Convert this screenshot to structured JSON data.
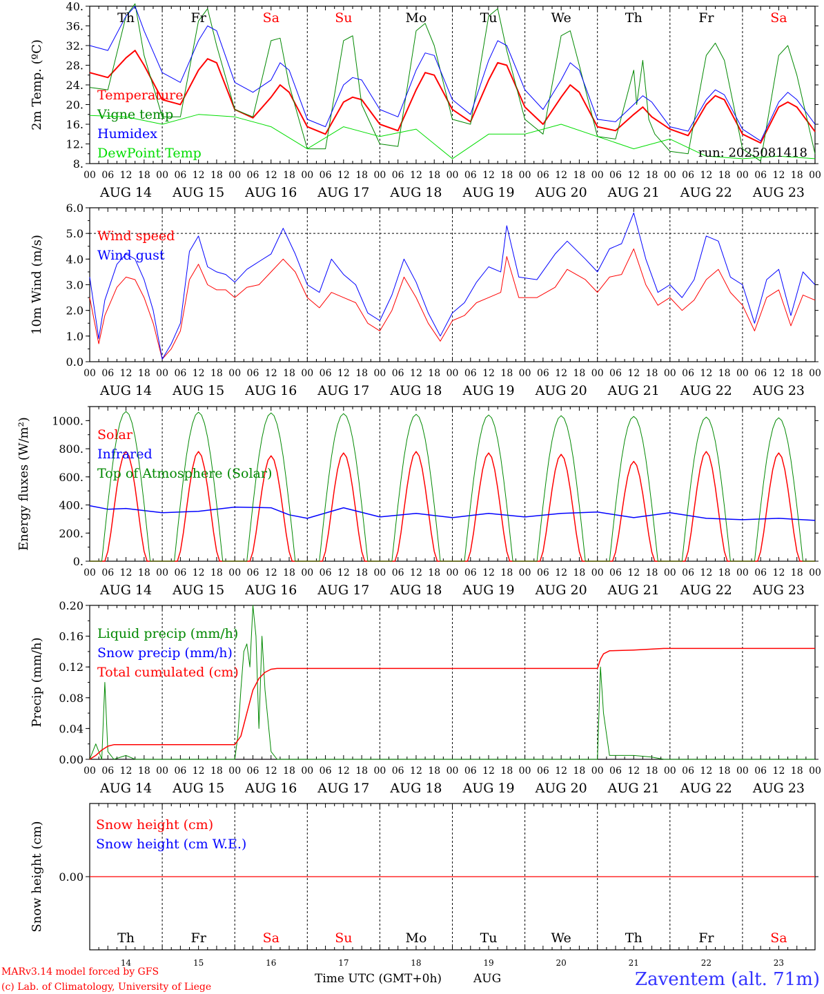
{
  "colors": {
    "red": "#ff0000",
    "green": "#008800",
    "blue": "#0000ff",
    "lightgreen": "#00dd00",
    "weekend": "#ff0000",
    "weekday": "#000000",
    "brand": "#3333ff"
  },
  "days": [
    {
      "name": "Th",
      "date": "AUG 14",
      "num": "14",
      "weekend": false
    },
    {
      "name": "Fr",
      "date": "AUG 15",
      "num": "15",
      "weekend": false
    },
    {
      "name": "Sa",
      "date": "AUG 16",
      "num": "16",
      "weekend": true
    },
    {
      "name": "Su",
      "date": "AUG 17",
      "num": "17",
      "weekend": true
    },
    {
      "name": "Mo",
      "date": "AUG 18",
      "num": "18",
      "weekend": false
    },
    {
      "name": "Tu",
      "date": "AUG 19",
      "num": "19",
      "weekend": false
    },
    {
      "name": "We",
      "date": "AUG 20",
      "num": "20",
      "weekend": false
    },
    {
      "name": "Th",
      "date": "AUG 21",
      "num": "21",
      "weekend": false
    },
    {
      "name": "Fr",
      "date": "AUG 22",
      "num": "22",
      "weekend": false
    },
    {
      "name": "Sa",
      "date": "AUG 23",
      "num": "23",
      "weekend": true
    }
  ],
  "hour_labels": [
    "00",
    "06",
    "12",
    "18"
  ],
  "final_hour_label": "00",
  "footer": {
    "model": "MARv3.14 model forced by GFS",
    "copyright": "(c) Lab. of Climatology, University of Liege",
    "xlabel": "Time UTC (GMT+0h)",
    "month": "AUG",
    "station": "Zaventem (alt. 71m)"
  },
  "chart_data": [
    {
      "id": "temperature",
      "type": "line",
      "ylabel": "2m Temp. (ºC)",
      "ylim": [
        8,
        40
      ],
      "yticks": [
        "40.",
        "36.",
        "32.",
        "28.",
        "24.",
        "20.",
        "16.",
        "12.",
        "8."
      ],
      "ytick_values": [
        40,
        36,
        32,
        28,
        24,
        20,
        16,
        12,
        8
      ],
      "x_unit": "hours since AUG 14 00 UTC",
      "x_range": [
        0,
        240
      ],
      "annotation": "run: 2025081418",
      "series": [
        {
          "name": "Temperature",
          "color": "red",
          "width": 2,
          "x": [
            0,
            6,
            12,
            15,
            18,
            24,
            30,
            36,
            39,
            42,
            48,
            54,
            60,
            63,
            66,
            72,
            78,
            84,
            87,
            90,
            96,
            102,
            108,
            111,
            114,
            120,
            126,
            132,
            135,
            138,
            144,
            150,
            156,
            159,
            162,
            168,
            174,
            180,
            183,
            186,
            192,
            198,
            204,
            207,
            210,
            216,
            222,
            228,
            231,
            234,
            240
          ],
          "y": [
            26.5,
            25.5,
            29.5,
            31,
            28,
            21,
            20,
            27,
            29.3,
            28.5,
            19,
            17.3,
            21.5,
            24,
            22.5,
            15.5,
            14,
            20.5,
            21.5,
            21,
            16,
            14.7,
            23,
            26.5,
            26,
            19,
            16.5,
            25,
            28.5,
            28,
            19.5,
            16,
            21.5,
            24,
            22.5,
            15.5,
            14.7,
            18,
            19.5,
            17.5,
            15,
            13.7,
            20,
            21.8,
            21,
            14,
            12.2,
            19.5,
            20.5,
            19.5,
            14.5
          ]
        },
        {
          "name": "Vigne temp",
          "color": "green",
          "width": 1,
          "x": [
            0,
            6,
            12,
            15,
            18,
            24,
            30,
            36,
            39,
            42,
            48,
            54,
            60,
            63,
            66,
            72,
            78,
            84,
            87,
            90,
            96,
            102,
            108,
            111,
            114,
            120,
            126,
            132,
            135,
            138,
            144,
            150,
            156,
            159,
            162,
            168,
            174,
            180,
            181,
            183,
            185,
            187,
            192,
            198,
            204,
            207,
            210,
            216,
            222,
            228,
            231,
            234,
            240
          ],
          "y": [
            23.5,
            23,
            38,
            40.5,
            30,
            17.5,
            17.5,
            37,
            39.5,
            32,
            19,
            17.5,
            33,
            33.5,
            24,
            11,
            11,
            33,
            34,
            20,
            12,
            11.5,
            35,
            36.5,
            32,
            17,
            16,
            38,
            39.5,
            31,
            17,
            14,
            34,
            35,
            28,
            13.5,
            13,
            27,
            20,
            29,
            17,
            14,
            10.5,
            10,
            30,
            32.5,
            29,
            11,
            8.5,
            30,
            32,
            26,
            10
          ]
        },
        {
          "name": "Humidex",
          "color": "blue",
          "width": 1,
          "x": [
            0,
            6,
            12,
            15,
            18,
            24,
            30,
            36,
            39,
            42,
            48,
            54,
            60,
            63,
            66,
            72,
            78,
            84,
            87,
            90,
            96,
            102,
            108,
            111,
            114,
            120,
            126,
            132,
            135,
            138,
            144,
            150,
            156,
            159,
            162,
            168,
            174,
            180,
            183,
            186,
            192,
            198,
            204,
            207,
            210,
            216,
            222,
            228,
            231,
            234,
            240
          ],
          "y": [
            32,
            31,
            38,
            40,
            35,
            26.5,
            24.5,
            33,
            36,
            35,
            24.5,
            22.5,
            25,
            28.5,
            27,
            17,
            15.5,
            24,
            25.5,
            25,
            19,
            17.5,
            27,
            30.5,
            30,
            21,
            18,
            29,
            33,
            32,
            23,
            19,
            25,
            28.5,
            27,
            17,
            16.5,
            20,
            21.8,
            20.5,
            15.5,
            14.6,
            21,
            23,
            22,
            15,
            12.6,
            20.5,
            22.5,
            21,
            16
          ]
        },
        {
          "name": "DewPoint Temp",
          "color": "lightgreen",
          "width": 1,
          "x": [
            0,
            12,
            24,
            36,
            48,
            60,
            72,
            84,
            96,
            108,
            120,
            132,
            144,
            156,
            168,
            180,
            192,
            204,
            216,
            228,
            240
          ],
          "y": [
            17.8,
            17.5,
            16,
            18,
            17.5,
            15.5,
            11,
            15.5,
            13.5,
            15,
            9,
            14,
            14,
            16,
            13.5,
            11,
            13,
            9.5,
            9,
            9.5,
            9
          ]
        }
      ]
    },
    {
      "id": "wind",
      "type": "line",
      "ylabel": "10m Wind (m/s)",
      "ylim": [
        0,
        6
      ],
      "yticks": [
        "6.0",
        "5.0",
        "4.0",
        "3.0",
        "2.0",
        "1.0",
        "0.0"
      ],
      "ytick_values": [
        6,
        5,
        4,
        3,
        2,
        1,
        0
      ],
      "reference_line": 5,
      "x_unit": "hours since AUG 14 00 UTC",
      "x_range": [
        0,
        240
      ],
      "series": [
        {
          "name": "Wind speed",
          "color": "red",
          "width": 1,
          "x": [
            0,
            3,
            5,
            9,
            12,
            15,
            18,
            21,
            24,
            27,
            30,
            33,
            36,
            39,
            42,
            45,
            48,
            52,
            56,
            60,
            64,
            68,
            72,
            76,
            80,
            84,
            88,
            92,
            96,
            100,
            104,
            108,
            112,
            116,
            120,
            124,
            128,
            132,
            136,
            138,
            142,
            148,
            154,
            158,
            164,
            168,
            172,
            176,
            180,
            184,
            188,
            192,
            196,
            200,
            204,
            208,
            212,
            216,
            220,
            224,
            228,
            232,
            236,
            240
          ],
          "y": [
            2.5,
            0.7,
            1.8,
            2.9,
            3.3,
            3.2,
            2.5,
            1.5,
            0.1,
            0.5,
            1.2,
            3.2,
            3.8,
            3.0,
            2.8,
            2.8,
            2.5,
            2.9,
            3.0,
            3.5,
            4.0,
            3.5,
            2.5,
            2.1,
            2.7,
            2.5,
            2.3,
            1.5,
            1.2,
            2.0,
            3.3,
            2.5,
            1.5,
            0.8,
            1.6,
            1.8,
            2.3,
            2.5,
            2.7,
            4.1,
            2.5,
            2.5,
            2.9,
            3.6,
            3.2,
            2.7,
            3.3,
            3.4,
            4.4,
            3.0,
            2.2,
            2.5,
            2.0,
            2.4,
            3.2,
            3.6,
            2.7,
            2.2,
            1.2,
            2.5,
            2.8,
            1.4,
            2.6,
            2.4
          ]
        },
        {
          "name": "Wind gust",
          "color": "blue",
          "width": 1,
          "x": [
            0,
            3,
            5,
            9,
            12,
            15,
            18,
            21,
            24,
            27,
            30,
            33,
            36,
            39,
            42,
            45,
            48,
            52,
            56,
            60,
            64,
            68,
            72,
            76,
            80,
            84,
            88,
            92,
            96,
            100,
            104,
            108,
            112,
            116,
            120,
            124,
            128,
            132,
            136,
            138,
            142,
            148,
            154,
            158,
            164,
            168,
            172,
            176,
            180,
            184,
            188,
            192,
            196,
            200,
            204,
            208,
            212,
            216,
            220,
            224,
            228,
            232,
            236,
            240
          ],
          "y": [
            3.3,
            0.9,
            2.4,
            3.8,
            4.2,
            4.0,
            3.2,
            2.0,
            0.1,
            0.7,
            1.5,
            4.3,
            4.9,
            3.7,
            3.5,
            3.4,
            3.1,
            3.6,
            3.9,
            4.2,
            5.2,
            4.2,
            3.0,
            2.7,
            4.0,
            3.4,
            3.0,
            1.9,
            1.6,
            2.6,
            4.0,
            3.1,
            1.9,
            1.0,
            1.9,
            2.3,
            3.1,
            3.7,
            3.5,
            5.3,
            3.3,
            3.2,
            4.2,
            4.7,
            4.0,
            3.5,
            4.4,
            4.6,
            5.8,
            4.0,
            2.7,
            3.0,
            2.5,
            3.2,
            4.9,
            4.7,
            3.3,
            3.0,
            1.5,
            3.2,
            3.6,
            1.8,
            3.5,
            3.0
          ]
        }
      ]
    },
    {
      "id": "energy",
      "type": "line",
      "ylabel": "Energy fluxes (W/m²)",
      "ylim": [
        0,
        1100
      ],
      "yticks": [
        "1000.",
        "800.",
        "600.",
        "400.",
        "200.",
        "0."
      ],
      "ytick_values": [
        1000,
        800,
        600,
        400,
        200,
        0
      ],
      "x_unit": "hours since AUG 14 00 UTC",
      "x_range": [
        0,
        240
      ],
      "series": [
        {
          "name": "Solar",
          "color": "red",
          "width": 1.5,
          "daily_peak": [
            780,
            780,
            750,
            770,
            780,
            770,
            760,
            710,
            780,
            770
          ],
          "x": [
            0,
            24,
            48,
            72,
            96,
            120,
            144,
            168,
            192,
            216
          ],
          "y": [
            780,
            780,
            750,
            770,
            780,
            770,
            760,
            710,
            780,
            770
          ]
        },
        {
          "name": "Infrared",
          "color": "blue",
          "width": 1.5,
          "x": [
            0,
            6,
            12,
            24,
            36,
            48,
            60,
            66,
            72,
            84,
            96,
            108,
            120,
            132,
            144,
            156,
            168,
            180,
            192,
            204,
            216,
            228,
            240
          ],
          "y": [
            395,
            370,
            375,
            345,
            355,
            385,
            380,
            330,
            305,
            380,
            315,
            340,
            310,
            340,
            315,
            340,
            350,
            310,
            345,
            305,
            295,
            305,
            290
          ]
        },
        {
          "name": "Top of Atmosphere (Solar)",
          "color": "green",
          "width": 1,
          "x": [
            0,
            24,
            48,
            72,
            96,
            120,
            144,
            168,
            192,
            216
          ],
          "y": [
            1065,
            1060,
            1055,
            1050,
            1045,
            1040,
            1035,
            1030,
            1025,
            1020
          ]
        }
      ]
    },
    {
      "id": "precip",
      "type": "line",
      "ylabel": "Precip (mm/h)",
      "ylim": [
        0,
        0.2
      ],
      "yticks": [
        "0.20",
        "0.16",
        "0.12",
        "0.08",
        "0.04",
        "0.00"
      ],
      "ytick_values": [
        0.2,
        0.16,
        0.12,
        0.08,
        0.04,
        0
      ],
      "x_unit": "hours since AUG 14 00 UTC",
      "x_range": [
        0,
        240
      ],
      "series": [
        {
          "name": "Liquid precip (mm/h)",
          "color": "green",
          "width": 1,
          "x": [
            0,
            2,
            4,
            5,
            6,
            8,
            12,
            15,
            48,
            49,
            50,
            51,
            52,
            53,
            54,
            55,
            56,
            57,
            58,
            59,
            60,
            62,
            64,
            168,
            169,
            170,
            172,
            180,
            186,
            190,
            240
          ],
          "y": [
            0,
            0.02,
            0.0,
            0.1,
            0.01,
            0.0,
            0.005,
            0,
            0,
            0.03,
            0.09,
            0.14,
            0.15,
            0.12,
            0.2,
            0.16,
            0.04,
            0.16,
            0.09,
            0.05,
            0.01,
            0,
            0,
            0,
            0.12,
            0.06,
            0.005,
            0.005,
            0.003,
            0,
            0
          ]
        },
        {
          "name": "Snow precip (mm/h)",
          "color": "blue",
          "width": 1,
          "x": [],
          "y": []
        },
        {
          "name": "Total cumulated (cm)",
          "color": "red",
          "width": 1.5,
          "x": [
            0,
            2,
            4,
            6,
            8,
            10,
            48,
            50,
            52,
            54,
            56,
            58,
            60,
            62,
            168,
            169,
            170,
            172,
            180,
            190,
            240
          ],
          "y": [
            0,
            0.005,
            0.012,
            0.017,
            0.019,
            0.019,
            0.019,
            0.03,
            0.06,
            0.09,
            0.105,
            0.113,
            0.117,
            0.118,
            0.118,
            0.13,
            0.137,
            0.141,
            0.142,
            0.144,
            0.144
          ]
        }
      ]
    },
    {
      "id": "snow",
      "type": "line",
      "ylabel": "Snow height (cm)",
      "ylim": [
        -1,
        1
      ],
      "yticks": [
        "0.00"
      ],
      "ytick_values": [
        0
      ],
      "x_unit": "hours since AUG 14 00 UTC",
      "x_range": [
        0,
        240
      ],
      "series": [
        {
          "name": "Snow height (cm)",
          "color": "red",
          "width": 1.2,
          "x": [
            0,
            240
          ],
          "y": [
            0,
            0
          ]
        },
        {
          "name": "Snow height (cm W.E.)",
          "color": "blue",
          "width": 1,
          "x": [],
          "y": []
        }
      ]
    }
  ]
}
